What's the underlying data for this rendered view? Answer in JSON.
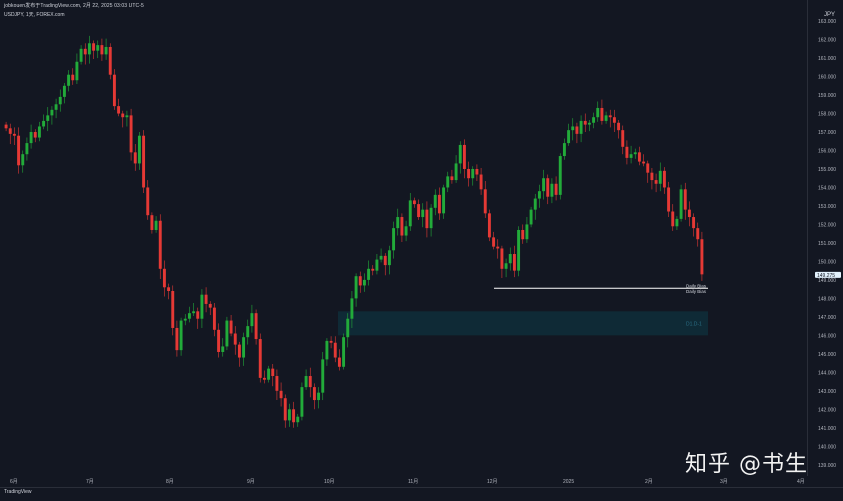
{
  "header": {
    "line1": "jobkouen发布于TradingView.com, 2月 22, 2025 03:03 UTC-5",
    "line2": "USDJPY, 1天, FOREX.com"
  },
  "currency": "JPY",
  "footer": {
    "logo": "TradingView"
  },
  "watermark": "知乎 @书生",
  "colors": {
    "up": "#26a69a",
    "down": "#ef5350",
    "up_bright": "#22ab3a",
    "down_bright": "#e53935",
    "zone": "#0f2a36",
    "price_tag": "#e3f2fd"
  },
  "chart_data": {
    "type": "candlestick",
    "symbol": "USDJPY",
    "ylim": [
      138.5,
      163.6
    ],
    "yticks": [
      139,
      140,
      141,
      142,
      143,
      144,
      145,
      146,
      147,
      148,
      149,
      150,
      151,
      152,
      153,
      154,
      155,
      156,
      157,
      158,
      159,
      160,
      161,
      162,
      163
    ],
    "ytick_labels": [
      "139.000",
      "140.000",
      "141.000",
      "142.000",
      "143.000",
      "144.000",
      "145.000",
      "146.000",
      "147.000",
      "148.000",
      "149.000",
      "150.000",
      "151.000",
      "152.000",
      "153.000",
      "154.000",
      "155.000",
      "156.000",
      "157.000",
      "158.000",
      "159.000",
      "160.000",
      "161.000",
      "162.000",
      "163.000"
    ],
    "xtick_labels": [
      "6月",
      "7月",
      "8月",
      "9月",
      "10月",
      "11月",
      "12月",
      "2025",
      "2月",
      "3月",
      "4月"
    ],
    "last_price": "149.275",
    "level_label": "Daily Bias",
    "level_price": 148.55,
    "zone_label": "D1.D-1",
    "zone": [
      146.0,
      147.3
    ],
    "closes": [
      157.2,
      156.9,
      156.8,
      155.2,
      155.8,
      156.4,
      157.0,
      156.7,
      157.3,
      157.6,
      157.9,
      158.2,
      158.5,
      158.9,
      159.5,
      160.1,
      159.8,
      160.8,
      161.5,
      161.2,
      161.8,
      161.4,
      161.7,
      161.2,
      161.6,
      160.1,
      158.4,
      158.0,
      157.8,
      157.9,
      155.9,
      155.3,
      156.8,
      154.0,
      152.5,
      151.7,
      152.2,
      149.6,
      148.6,
      148.4,
      146.4,
      145.2,
      146.8,
      146.9,
      147.2,
      147.3,
      146.9,
      148.2,
      147.7,
      147.5,
      146.3,
      145.1,
      145.4,
      146.8,
      146.1,
      145.5,
      144.8,
      145.9,
      146.5,
      147.2,
      145.8,
      143.7,
      143.6,
      144.2,
      143.8,
      143.0,
      142.6,
      141.4,
      142.0,
      141.3,
      141.6,
      143.2,
      143.8,
      143.2,
      142.5,
      142.9,
      144.7,
      145.7,
      145.6,
      144.8,
      144.3,
      145.9,
      146.9,
      148.0,
      149.2,
      148.7,
      149.0,
      149.6,
      149.5,
      150.1,
      150.3,
      149.8,
      150.6,
      151.8,
      152.4,
      151.4,
      151.9,
      153.3,
      153.1,
      152.4,
      152.8,
      151.8,
      152.9,
      153.6,
      152.6,
      154.0,
      154.6,
      154.4,
      155.3,
      156.3,
      155.0,
      154.5,
      155.0,
      154.7,
      153.9,
      152.6,
      151.3,
      150.8,
      150.7,
      149.6,
      149.9,
      150.4,
      149.5,
      151.7,
      151.2,
      152.0,
      152.8,
      153.4,
      153.8,
      154.5,
      153.5,
      154.2,
      153.6,
      155.7,
      156.4,
      157.1,
      157.3,
      156.9,
      157.6,
      157.4,
      157.5,
      157.8,
      158.3,
      157.6,
      157.9,
      157.8,
      157.5,
      157.1,
      156.2,
      155.6,
      155.8,
      155.9,
      155.4,
      155.3,
      154.8,
      154.4,
      154.2,
      154.9,
      154.0,
      152.7,
      151.9,
      152.3,
      153.9,
      152.8,
      152.4,
      151.8,
      151.2,
      149.3
    ]
  }
}
